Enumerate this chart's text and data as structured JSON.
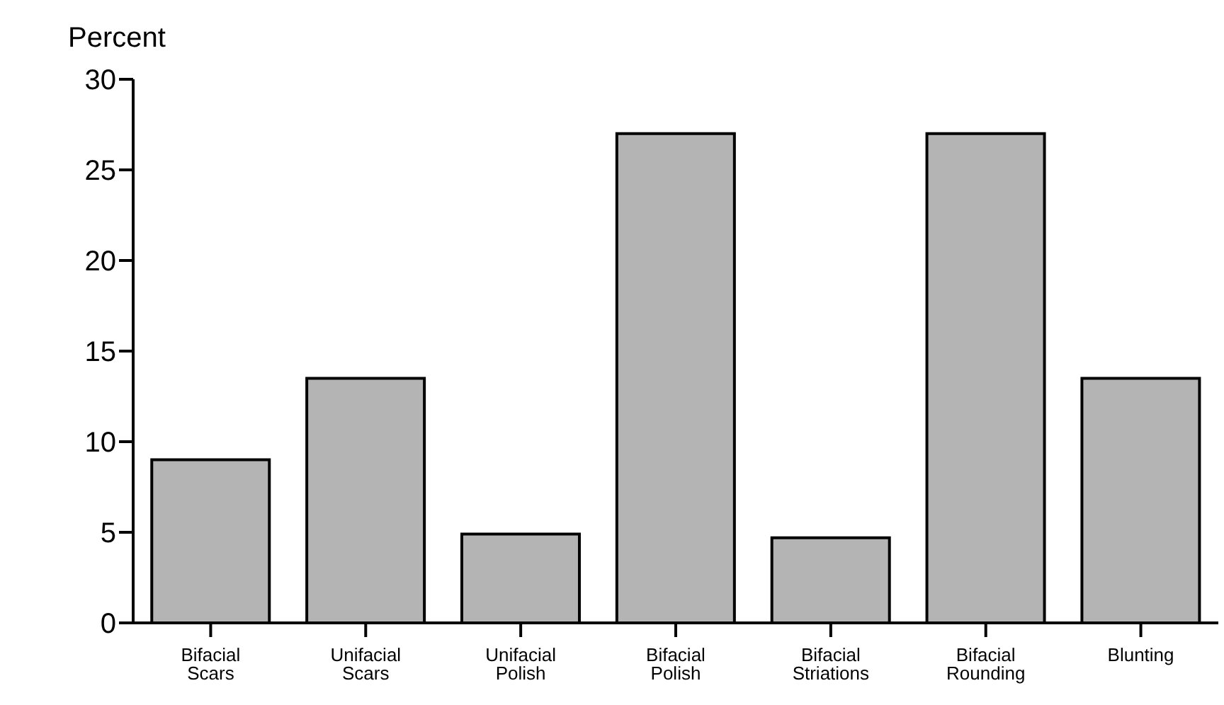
{
  "chart_data": {
    "type": "bar",
    "ylabel": "Percent",
    "categories": [
      "Bifacial Scars",
      "Unifacial Scars",
      "Unifacial Polish",
      "Bifacial Polish",
      "Bifacial Striations",
      "Bifacial Rounding",
      "Blunting"
    ],
    "values": [
      9,
      13.5,
      4.9,
      27,
      4.7,
      27,
      13.5
    ],
    "color": "#b4b4b4",
    "ylim": [
      0,
      30
    ],
    "yticks": [
      0,
      5,
      10,
      15,
      20,
      25,
      30
    ],
    "grid": false
  }
}
